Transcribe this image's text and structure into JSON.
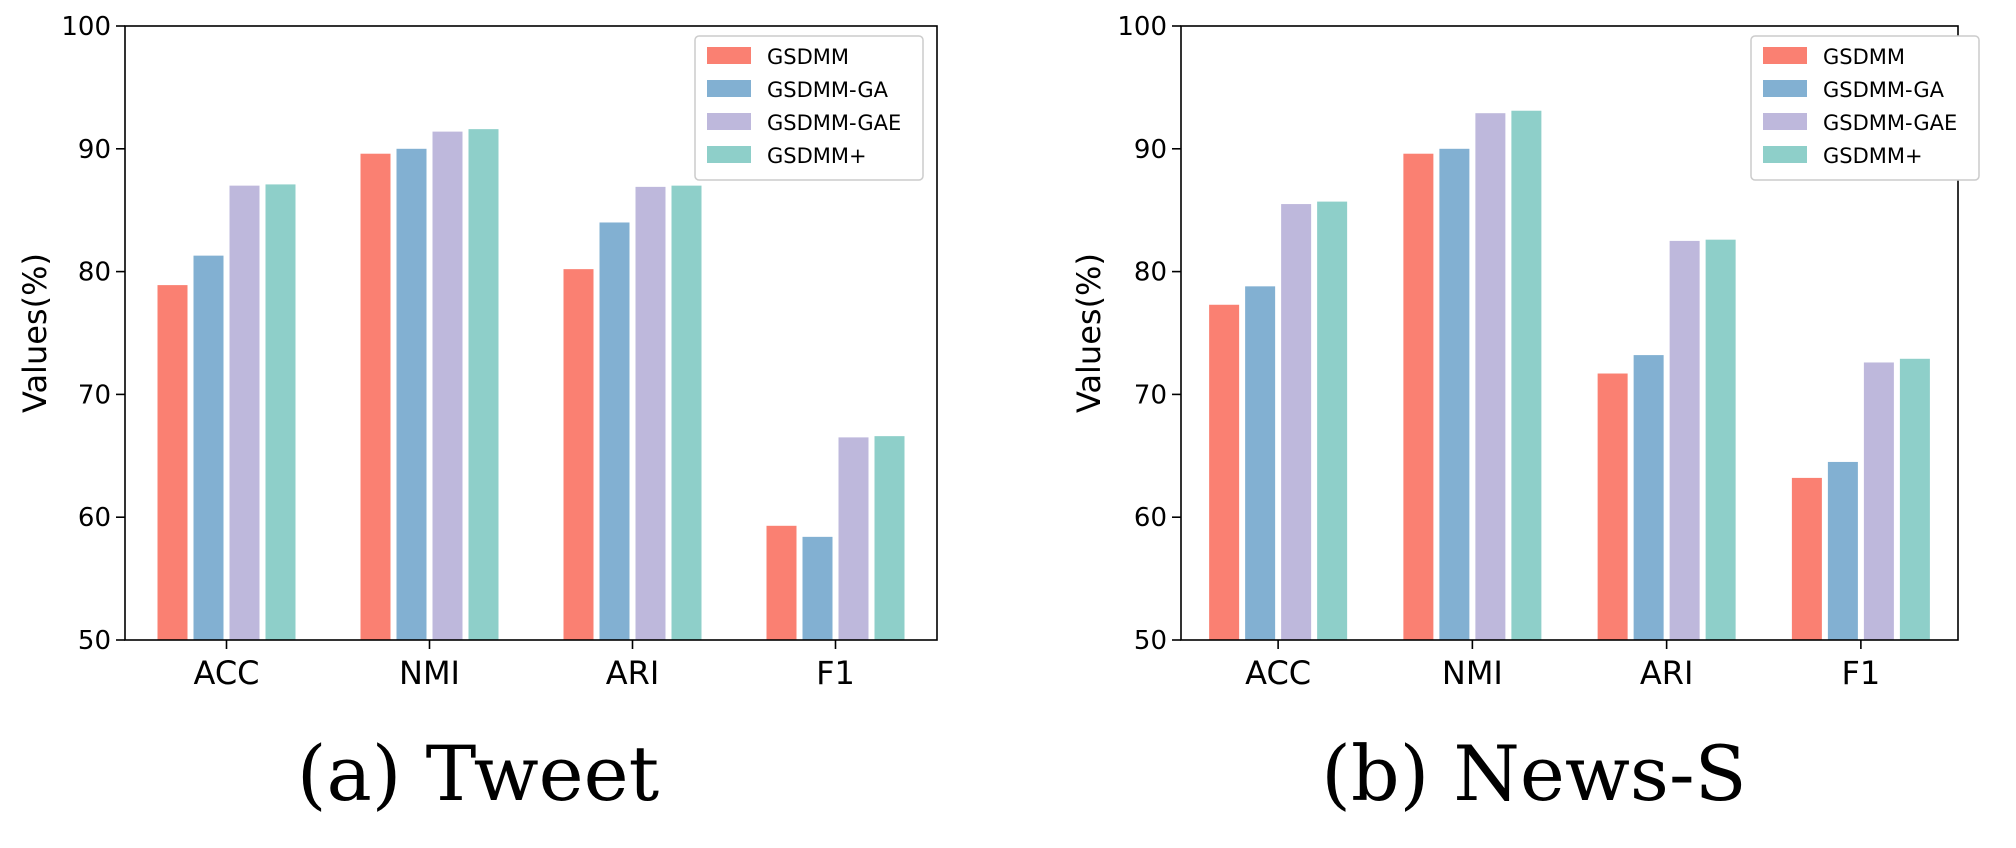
{
  "chart_data": [
    {
      "type": "bar",
      "caption": "(a) Tweet",
      "ylabel": "Values(%)",
      "xlabel": "",
      "ylim": [
        50,
        100
      ],
      "yticks": [
        "50",
        "60",
        "70",
        "80",
        "90",
        "100"
      ],
      "categories": [
        "ACC",
        "NMI",
        "ARI",
        "F1"
      ],
      "legend_position": "upper-right",
      "series": [
        {
          "name": "GSDMM",
          "color": "#fa8072",
          "values": [
            78.9,
            89.6,
            80.2,
            59.3
          ]
        },
        {
          "name": "GSDMM-GA",
          "color": "#82b0d2",
          "values": [
            81.3,
            90.0,
            84.0,
            58.4
          ]
        },
        {
          "name": "GSDMM-GAE",
          "color": "#beb8dc",
          "values": [
            87.0,
            91.4,
            86.9,
            66.5
          ]
        },
        {
          "name": "GSDMM+",
          "color": "#8ecfc9",
          "values": [
            87.1,
            91.6,
            87.0,
            66.6
          ]
        }
      ]
    },
    {
      "type": "bar",
      "caption": "(b) News-S",
      "ylabel": "Values(%)",
      "xlabel": "",
      "ylim": [
        50,
        100
      ],
      "yticks": [
        "50",
        "60",
        "70",
        "80",
        "90",
        "100"
      ],
      "categories": [
        "ACC",
        "NMI",
        "ARI",
        "F1"
      ],
      "legend_position": "upper-right",
      "series": [
        {
          "name": "GSDMM",
          "color": "#fa8072",
          "values": [
            77.3,
            89.6,
            71.7,
            63.2
          ]
        },
        {
          "name": "GSDMM-GA",
          "color": "#82b0d2",
          "values": [
            78.8,
            90.0,
            73.2,
            64.5
          ]
        },
        {
          "name": "GSDMM-GAE",
          "color": "#beb8dc",
          "values": [
            85.5,
            92.9,
            82.5,
            72.6
          ]
        },
        {
          "name": "GSDMM+",
          "color": "#8ecfc9",
          "values": [
            85.7,
            93.1,
            82.6,
            72.9
          ]
        }
      ]
    }
  ]
}
